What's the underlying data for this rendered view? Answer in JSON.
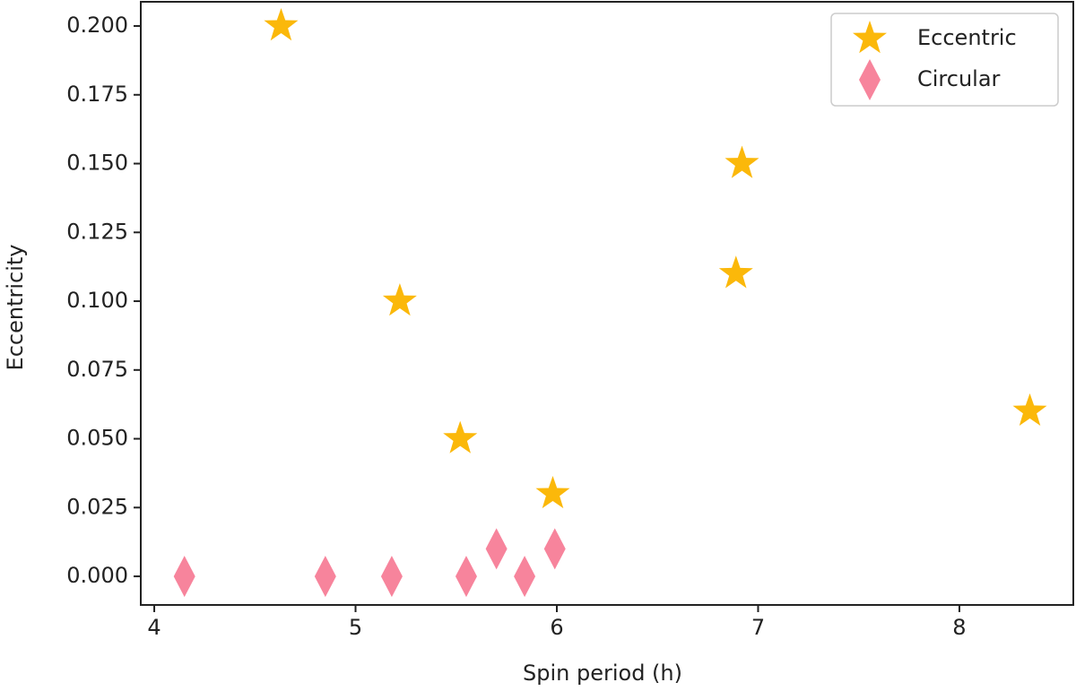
{
  "chart_data": {
    "type": "scatter",
    "xlabel": "Spin period (h)",
    "ylabel": "Eccentricity",
    "xlim": [
      3.933,
      8.566
    ],
    "ylim": [
      -0.0104,
      0.2088
    ],
    "xticks": [
      4,
      5,
      6,
      7,
      8
    ],
    "yticks": [
      {
        "value": 0,
        "label": "0.000"
      },
      {
        "value": 0.025,
        "label": "0.025"
      },
      {
        "value": 0.05,
        "label": "0.050"
      },
      {
        "value": 0.075,
        "label": "0.075"
      },
      {
        "value": 0.1,
        "label": "0.100"
      },
      {
        "value": 0.125,
        "label": "0.125"
      },
      {
        "value": 0.15,
        "label": "0.150"
      },
      {
        "value": 0.175,
        "label": "0.175"
      },
      {
        "value": 0.2,
        "label": "0.200"
      }
    ],
    "legend": "upper right",
    "series": [
      {
        "name": "Eccentric",
        "color": "#fbb80a",
        "marker": "star",
        "x": [
          4.63,
          5.22,
          5.52,
          5.98,
          6.89,
          6.92,
          8.35
        ],
        "values": [
          0.2,
          0.1,
          0.05,
          0.03,
          0.11,
          0.15,
          0.06
        ]
      },
      {
        "name": "Circular",
        "color": "#f7849c",
        "marker": "diamond",
        "x": [
          4.15,
          4.85,
          5.18,
          5.55,
          5.7,
          5.84,
          5.99
        ],
        "values": [
          0,
          0,
          0,
          0,
          0.01,
          0,
          0.01
        ]
      }
    ]
  }
}
